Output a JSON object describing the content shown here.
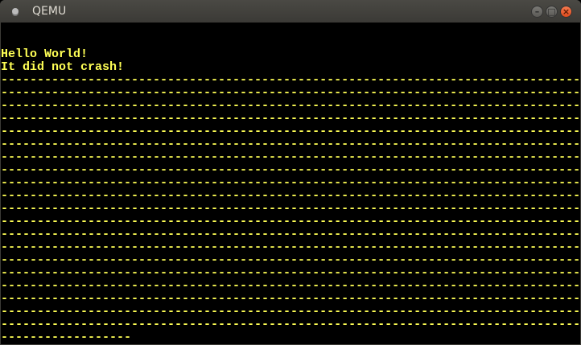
{
  "window": {
    "title": "QEMU"
  },
  "colors": {
    "text": "#ffff55",
    "background": "#000000",
    "close_button": "#e95420"
  },
  "screen": {
    "lines": [
      "",
      "",
      "Hello World!",
      "It did not crash!",
      "--------------------------------------------------------------------------------",
      "--------------------------------------------------------------------------------",
      "--------------------------------------------------------------------------------",
      "--------------------------------------------------------------------------------",
      "--------------------------------------------------------------------------------",
      "--------------------------------------------------------------------------------",
      "--------------------------------------------------------------------------------",
      "--------------------------------------------------------------------------------",
      "--------------------------------------------------------------------------------",
      "--------------------------------------------------------------------------------",
      "--------------------------------------------------------------------------------",
      "--------------------------------------------------------------------------------",
      "--------------------------------------------------------------------------------",
      "--------------------------------------------------------------------------------",
      "--------------------------------------------------------------------------------",
      "--------------------------------------------------------------------------------",
      "--------------------------------------------------------------------------------",
      "--------------------------------------------------------------------------------",
      "--------------------------------------------------------------------------------",
      "--------------------------------------------------------------------------------",
      "------------------"
    ]
  }
}
